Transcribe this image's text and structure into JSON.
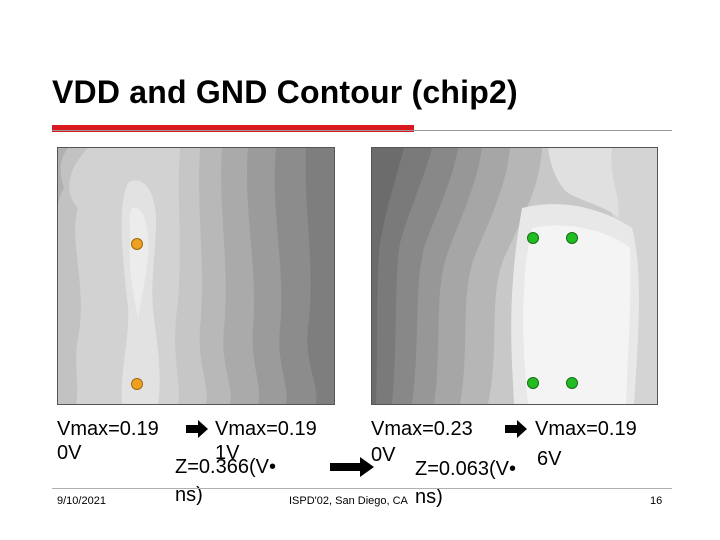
{
  "slide": {
    "title": "VDD and GND Contour (chip2)",
    "footer": {
      "date": "9/10/2021",
      "venue": "ISPD'02, San Diego, CA",
      "page": "16"
    }
  },
  "left_panel": {
    "vmax_before": "Vmax=0.19",
    "vmax_after": "Vmax=0.19",
    "line2_a": "0V",
    "line2_b": "1V",
    "z_value": "Z=0.366(V•",
    "z_unit": "ns)",
    "marker_color": "#f0a020"
  },
  "right_panel": {
    "vmax_before": "Vmax=0.23",
    "vmax_after": "Vmax=0.19",
    "line2_a": "0V",
    "line2_b": "6V",
    "z_value": "Z=0.063(V•",
    "z_unit": "ns)",
    "marker_color": "#22bb22"
  },
  "icons": {
    "arrow": "right-arrow-icon",
    "bullet": "bullet-dot-icon"
  }
}
